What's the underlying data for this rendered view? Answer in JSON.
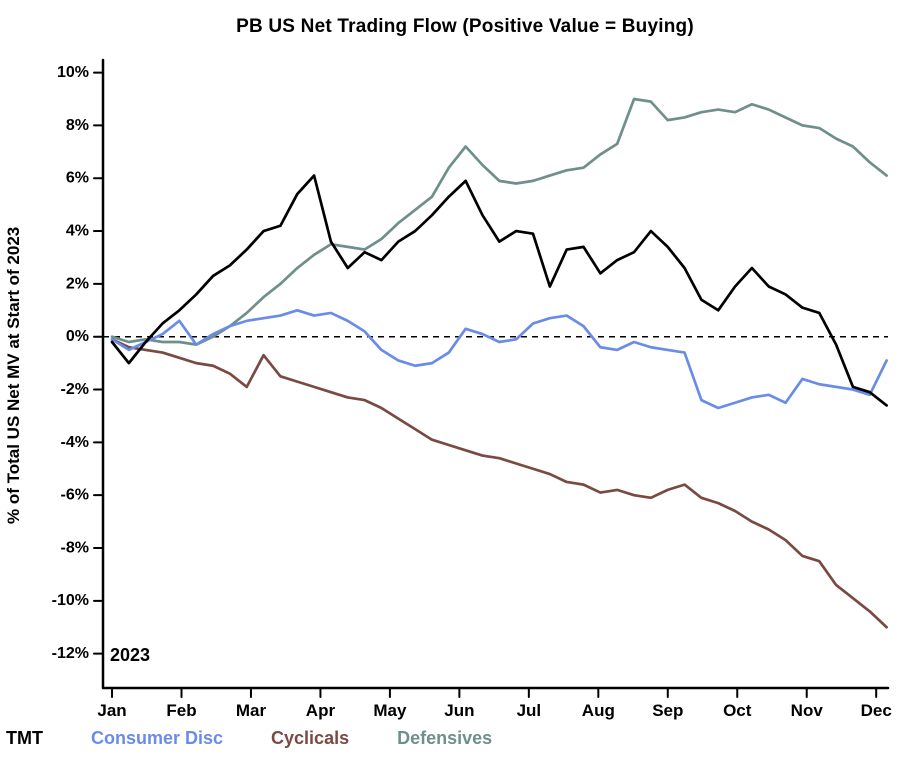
{
  "chart_data": {
    "type": "line",
    "title": "PB US Net Trading Flow (Positive Value = Buying)",
    "xlabel": "",
    "ylabel": "% of Total US Net MV at Start of 2023",
    "year_annotation": "2023",
    "x_tick_labels": [
      "Jan",
      "Feb",
      "Mar",
      "Apr",
      "May",
      "Jun",
      "Jul",
      "Aug",
      "Sep",
      "Oct",
      "Nov",
      "Dec"
    ],
    "y_ticks": [
      10,
      8,
      6,
      4,
      2,
      0,
      -2,
      -4,
      -6,
      -8,
      -10,
      -12
    ],
    "y_tick_suffix": "%",
    "ylim": [
      -13.3,
      10.4
    ],
    "x_range": [
      0,
      11.15
    ],
    "zero_line_dashed": true,
    "grid": false,
    "legend_position": "bottom-left",
    "axis_color": "#000000",
    "background_color": "#ffffff",
    "series": [
      {
        "name": "TMT",
        "color": "#000000",
        "values": [
          -0.2,
          -1.0,
          -0.2,
          0.5,
          1.0,
          1.6,
          2.3,
          2.7,
          3.3,
          4.0,
          4.2,
          5.4,
          6.1,
          3.6,
          2.6,
          3.2,
          2.9,
          3.6,
          4.0,
          4.6,
          5.3,
          5.9,
          4.6,
          3.6,
          4.0,
          3.9,
          1.9,
          3.3,
          3.4,
          2.4,
          2.9,
          3.2,
          4.0,
          3.4,
          2.6,
          1.4,
          1.0,
          1.9,
          2.6,
          1.9,
          1.6,
          1.1,
          0.9,
          -0.3,
          -1.9,
          -2.1,
          -2.6
        ]
      },
      {
        "name": "Consumer Disc",
        "color": "#6A8CE8",
        "values": [
          -0.1,
          -0.5,
          -0.2,
          0.1,
          0.6,
          -0.3,
          0.1,
          0.4,
          0.6,
          0.7,
          0.8,
          1.0,
          0.8,
          0.9,
          0.6,
          0.2,
          -0.5,
          -0.9,
          -1.1,
          -1.0,
          -0.6,
          0.3,
          0.1,
          -0.2,
          -0.1,
          0.5,
          0.7,
          0.8,
          0.4,
          -0.4,
          -0.5,
          -0.2,
          -0.4,
          -0.5,
          -0.6,
          -2.4,
          -2.7,
          -2.5,
          -2.3,
          -2.2,
          -2.5,
          -1.6,
          -1.8,
          -1.9,
          -2.0,
          -2.2,
          -0.9
        ]
      },
      {
        "name": "Cyclicals",
        "color": "#7A4A42",
        "values": [
          -0.1,
          -0.4,
          -0.5,
          -0.6,
          -0.8,
          -1.0,
          -1.1,
          -1.4,
          -1.9,
          -0.7,
          -1.5,
          -1.7,
          -1.9,
          -2.1,
          -2.3,
          -2.4,
          -2.7,
          -3.1,
          -3.5,
          -3.9,
          -4.1,
          -4.3,
          -4.5,
          -4.6,
          -4.8,
          -5.0,
          -5.2,
          -5.5,
          -5.6,
          -5.9,
          -5.8,
          -6.0,
          -6.1,
          -5.8,
          -5.6,
          -6.1,
          -6.3,
          -6.6,
          -7.0,
          -7.3,
          -7.7,
          -8.3,
          -8.5,
          -9.4,
          -9.9,
          -10.4,
          -11.0
        ]
      },
      {
        "name": "Defensives",
        "color": "#6F8F8B",
        "values": [
          0.0,
          -0.2,
          -0.1,
          -0.2,
          -0.2,
          -0.3,
          0.0,
          0.4,
          0.9,
          1.5,
          2.0,
          2.6,
          3.1,
          3.5,
          3.4,
          3.3,
          3.7,
          4.3,
          4.8,
          5.3,
          6.4,
          7.2,
          6.5,
          5.9,
          5.8,
          5.9,
          6.1,
          6.3,
          6.4,
          6.9,
          7.3,
          9.0,
          8.9,
          8.2,
          8.3,
          8.5,
          8.6,
          8.5,
          8.8,
          8.6,
          8.3,
          8.0,
          7.9,
          7.5,
          7.2,
          6.6,
          6.1
        ]
      }
    ]
  }
}
